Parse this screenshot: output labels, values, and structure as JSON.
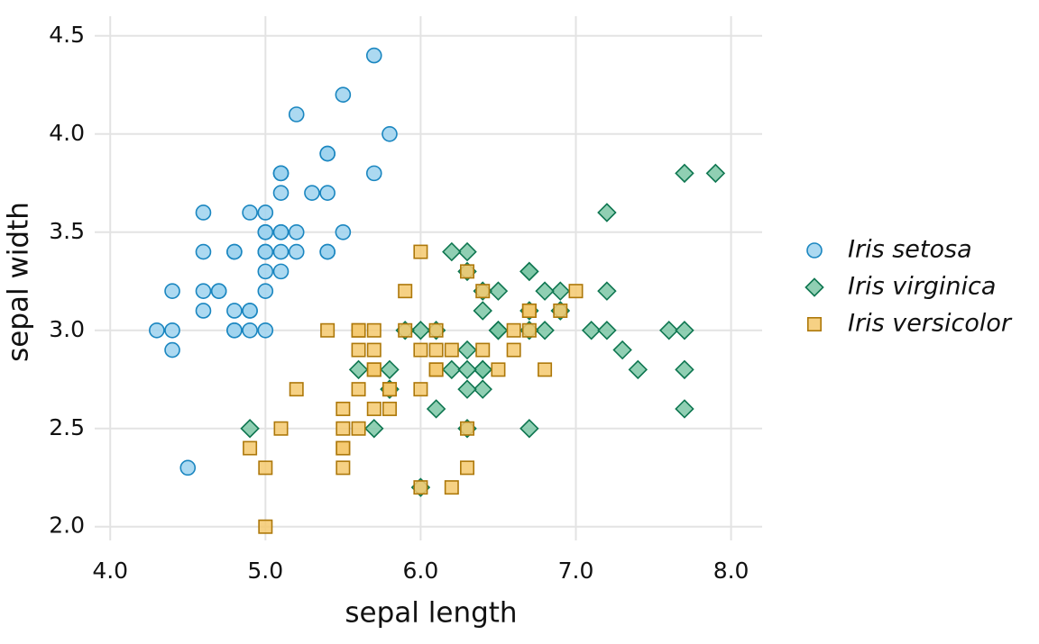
{
  "chart_data": {
    "type": "scatter",
    "x_label": "sepal length",
    "y_label": "sepal width",
    "xlim": [
      3.9,
      8.2
    ],
    "ylim": [
      1.93,
      4.6
    ],
    "xticks": [
      {
        "value": 4,
        "label": "4.0"
      },
      {
        "value": 5,
        "label": "5.0"
      },
      {
        "value": 6,
        "label": "6.0"
      },
      {
        "value": 7,
        "label": "7.0"
      },
      {
        "value": 8,
        "label": "8.0"
      }
    ],
    "yticks": [
      {
        "value": 2,
        "label": "2.0"
      },
      2.5,
      {
        "value": 3,
        "label": "3.0"
      },
      3.5,
      {
        "value": 4,
        "label": "4.0"
      },
      4.5
    ],
    "grid": true,
    "legend": "right",
    "series": [
      {
        "name": "Iris setosa",
        "marker": "circle",
        "color": "#9dd2ee",
        "edgecolor": "#1a86c0",
        "x": [
          5.1,
          4.9,
          4.7,
          4.6,
          5.0,
          5.4,
          4.6,
          5.0,
          4.4,
          4.9,
          5.4,
          4.8,
          4.8,
          4.3,
          5.8,
          5.7,
          5.4,
          5.1,
          5.7,
          5.1,
          5.4,
          5.1,
          4.6,
          5.1,
          4.8,
          5.0,
          5.0,
          5.2,
          5.2,
          4.7,
          4.8,
          5.4,
          5.2,
          5.5,
          4.9,
          5.0,
          5.5,
          4.9,
          4.4,
          5.1,
          5.0,
          4.5,
          4.4,
          5.0,
          5.1,
          4.8,
          5.1,
          4.6,
          5.3,
          5.0
        ],
        "values": [
          3.5,
          3.0,
          3.2,
          3.1,
          3.6,
          3.9,
          3.4,
          3.4,
          2.9,
          3.1,
          3.7,
          3.4,
          3.0,
          3.0,
          4.0,
          4.4,
          3.9,
          3.5,
          3.8,
          3.8,
          3.4,
          3.7,
          3.6,
          3.3,
          3.4,
          3.0,
          3.4,
          3.5,
          3.4,
          3.2,
          3.1,
          3.4,
          4.1,
          4.2,
          3.1,
          3.2,
          3.5,
          3.6,
          3.0,
          3.4,
          3.5,
          2.3,
          3.2,
          3.5,
          3.8,
          3.0,
          3.8,
          3.2,
          3.7,
          3.3
        ]
      },
      {
        "name": "Iris virginica",
        "marker": "diamond",
        "color": "#7cc7a6",
        "edgecolor": "#0e7650",
        "x": [
          6.3,
          5.8,
          7.1,
          6.3,
          6.5,
          7.6,
          4.9,
          7.3,
          6.7,
          7.2,
          6.5,
          6.4,
          6.8,
          5.7,
          5.8,
          6.4,
          6.5,
          7.7,
          7.7,
          6.0,
          6.9,
          5.6,
          7.7,
          6.3,
          6.7,
          7.2,
          6.2,
          6.1,
          6.4,
          7.2,
          7.4,
          7.9,
          6.4,
          6.3,
          6.1,
          7.7,
          6.3,
          6.4,
          6.0,
          6.9,
          6.7,
          6.9,
          5.8,
          6.8,
          6.7,
          6.7,
          6.3,
          6.5,
          6.2,
          5.9
        ],
        "values": [
          3.3,
          2.7,
          3.0,
          2.9,
          3.0,
          3.0,
          2.5,
          2.9,
          2.5,
          3.6,
          3.2,
          2.7,
          3.0,
          2.5,
          2.8,
          3.2,
          3.0,
          3.8,
          2.6,
          2.2,
          3.2,
          2.8,
          2.8,
          2.7,
          3.3,
          3.2,
          2.8,
          3.0,
          2.8,
          3.0,
          2.8,
          3.8,
          2.8,
          2.8,
          2.6,
          3.0,
          3.4,
          3.1,
          3.0,
          3.1,
          3.1,
          3.1,
          2.7,
          3.2,
          3.3,
          3.0,
          2.5,
          3.0,
          3.4,
          3.0
        ]
      },
      {
        "name": "Iris versicolor",
        "marker": "square",
        "color": "#f5c96f",
        "edgecolor": "#ad780a",
        "x": [
          7.0,
          6.4,
          6.9,
          5.5,
          6.5,
          5.7,
          6.3,
          4.9,
          6.6,
          5.2,
          5.0,
          5.9,
          6.0,
          6.1,
          5.6,
          6.7,
          5.6,
          5.8,
          6.2,
          5.6,
          5.9,
          6.1,
          6.3,
          6.1,
          6.4,
          6.6,
          6.8,
          6.7,
          6.0,
          5.7,
          5.5,
          5.5,
          5.8,
          6.0,
          5.4,
          6.0,
          6.7,
          6.3,
          5.6,
          5.5,
          5.5,
          6.1,
          5.8,
          5.0,
          5.6,
          5.7,
          5.7,
          6.2,
          5.1,
          5.7
        ],
        "values": [
          3.2,
          3.2,
          3.1,
          2.3,
          2.8,
          2.8,
          3.3,
          2.4,
          2.9,
          2.7,
          2.0,
          3.0,
          2.2,
          2.9,
          2.9,
          3.1,
          3.0,
          2.7,
          2.2,
          2.5,
          3.2,
          2.8,
          2.5,
          2.8,
          2.9,
          3.0,
          2.8,
          3.0,
          2.9,
          2.6,
          2.4,
          2.4,
          2.7,
          2.7,
          3.0,
          3.4,
          3.1,
          2.3,
          3.0,
          2.5,
          2.6,
          3.0,
          2.6,
          2.3,
          2.7,
          3.0,
          2.9,
          2.9,
          2.5,
          2.8
        ]
      }
    ]
  }
}
